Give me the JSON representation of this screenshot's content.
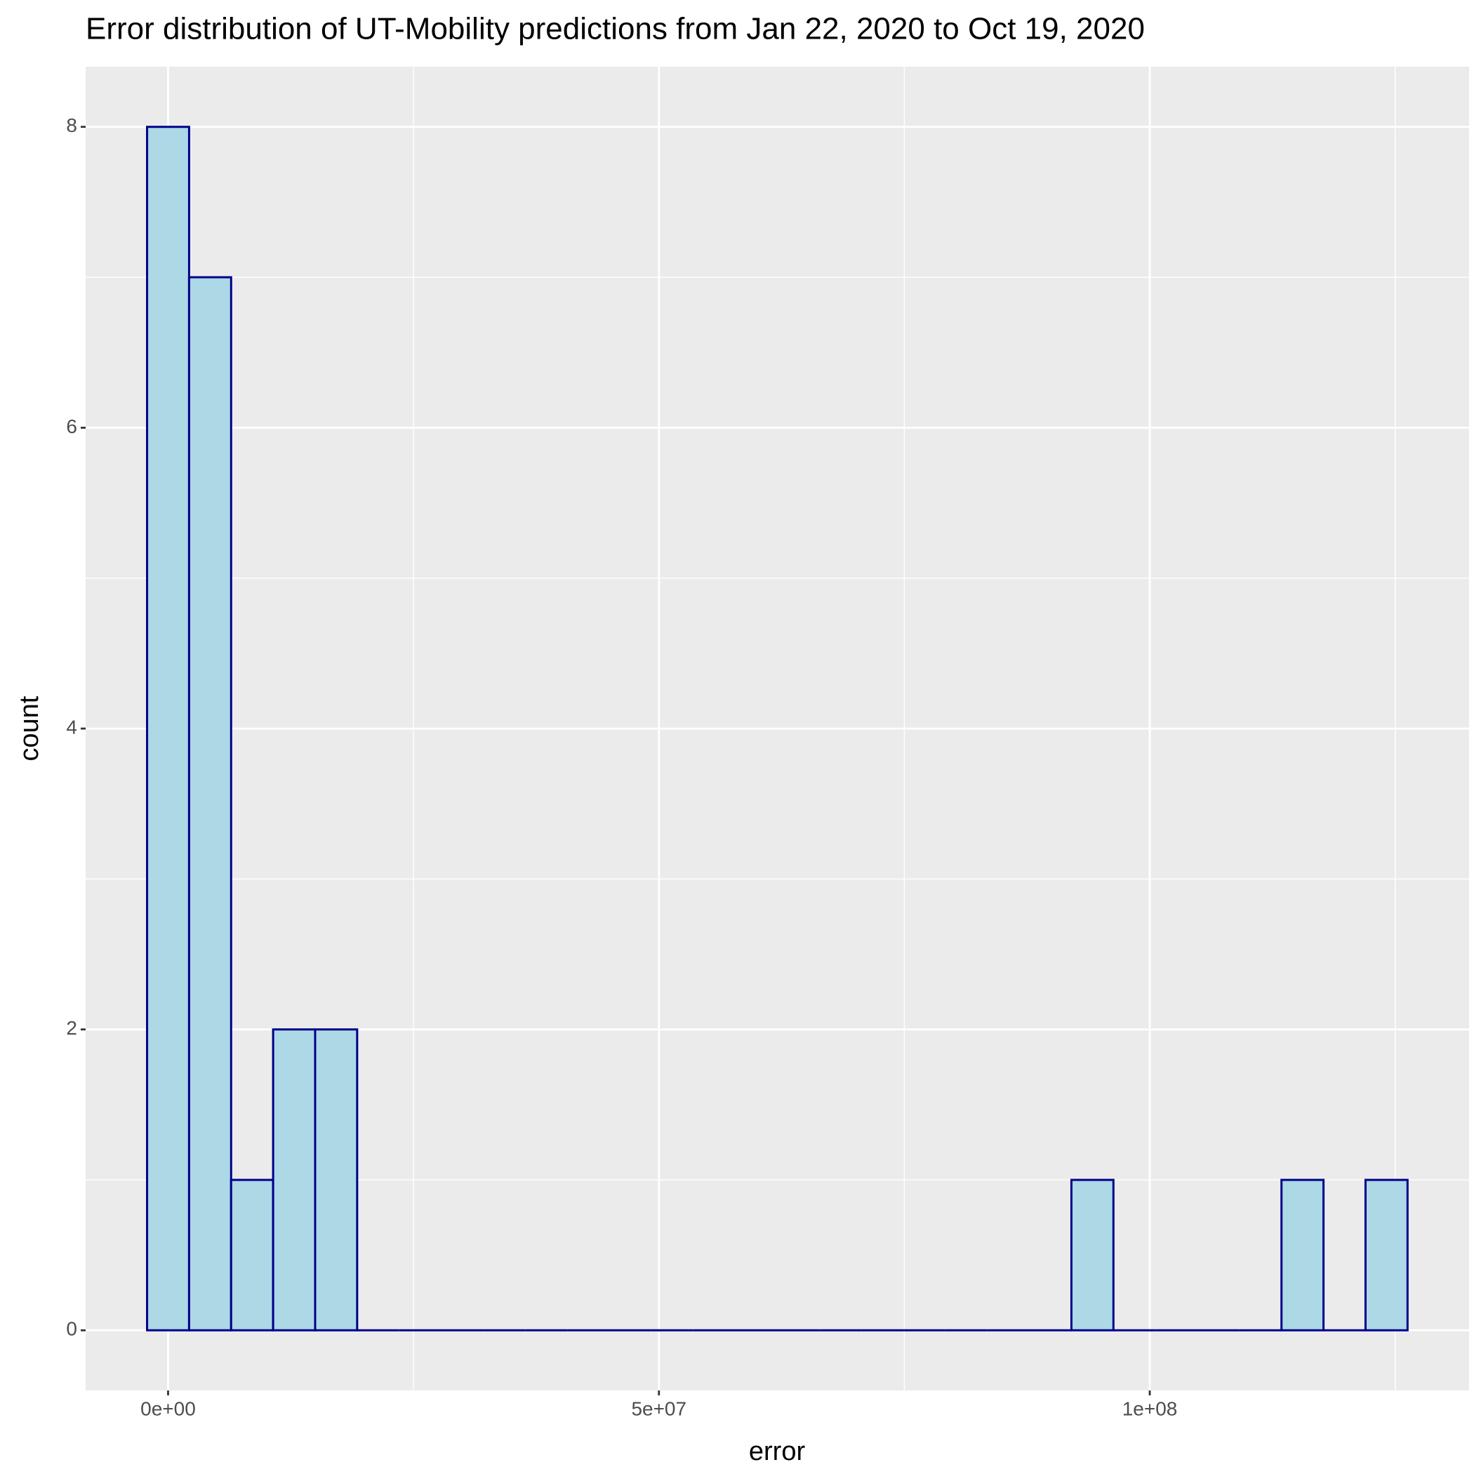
{
  "chart_data": {
    "type": "histogram",
    "title": "Error distribution of UT-Mobility predictions from Jan 22, 2020 to Oct 19, 2020",
    "x_label": "error",
    "y_label": "count",
    "bins": [
      -2140000,
      2140000,
      6420000,
      10700000,
      14980000,
      19260000,
      23540000,
      27820000,
      32100000,
      36380000,
      40660000,
      44940000,
      49220000,
      53500000,
      57780000,
      62060000,
      66340000,
      70620000,
      74900000,
      79180000,
      83460000,
      87740000,
      92020000,
      96300000,
      100580000,
      104860000,
      109140000,
      113420000,
      117700000,
      121980000,
      126260000
    ],
    "values": [
      8,
      7,
      1,
      2,
      2,
      0,
      0,
      0,
      0,
      0,
      0,
      0,
      0,
      0,
      0,
      0,
      0,
      0,
      0,
      0,
      0,
      0,
      1,
      0,
      0,
      0,
      0,
      1,
      0,
      1
    ],
    "color": "#ADD8E6",
    "edgecolor": "#00008B",
    "xlim": [
      -8400000,
      132530000
    ],
    "xticks": [
      {
        "value": 0,
        "label": "0e+00"
      },
      {
        "value": 50000000,
        "label": "5e+07"
      },
      {
        "value": 100000000,
        "label": "1e+08"
      }
    ],
    "ylim": [
      -0.4,
      8.4
    ],
    "yticks": [
      0,
      2,
      4,
      6,
      8
    ],
    "grid": true
  }
}
